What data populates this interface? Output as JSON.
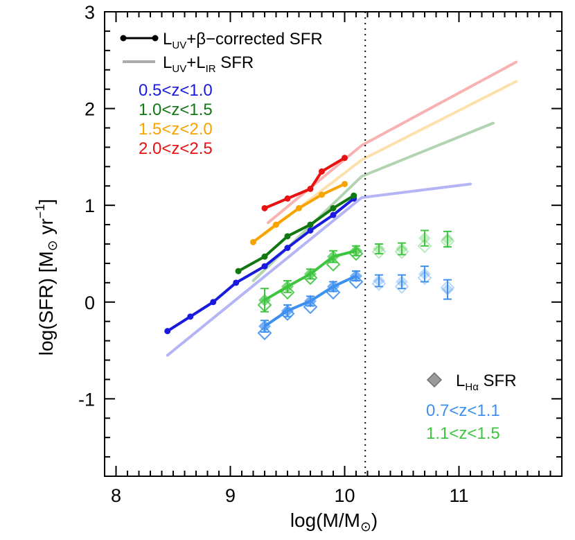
{
  "chart_data": {
    "type": "scatter",
    "xlabel": "log(M/M_sun)",
    "ylabel": "log(SFR) [M_sun yr^-1]",
    "xlim": [
      7.9,
      11.9
    ],
    "ylim": [
      -1.8,
      3.0
    ],
    "x_ticks": [
      "8",
      "9",
      "10",
      "11"
    ],
    "y_ticks": [
      "-1",
      "0",
      "1",
      "2",
      "3"
    ],
    "vline_x": 10.18,
    "colors": {
      "blue": "#1a1adf",
      "green": "#117811",
      "orange": "#f8a300",
      "red": "#e81010",
      "ha_blue": "#3d90ef",
      "ha_green": "#3fc43f",
      "grey": "#9a9a9a"
    },
    "legend": {
      "uv_beta": {
        "main": "L",
        "sub": "UV",
        "rest": "+β−corrected SFR"
      },
      "uv_ir": {
        "main": "L",
        "sub": "UV",
        "plus": "+L",
        "sub2": "IR",
        "rest": " SFR"
      },
      "ha": {
        "main": "L",
        "sub": "Hα",
        "rest": " SFR"
      }
    },
    "ranges_uv": [
      {
        "label": "0.5<z<1.0",
        "color": "blue"
      },
      {
        "label": "1.0<z<1.5",
        "color": "green"
      },
      {
        "label": "1.5<z<2.0",
        "color": "orange"
      },
      {
        "label": "2.0<z<2.5",
        "color": "red"
      }
    ],
    "ranges_ha": [
      {
        "label": "0.7<z<1.1",
        "color": "ha_blue"
      },
      {
        "label": "1.1<z<1.5",
        "color": "ha_green"
      }
    ],
    "uv_beta_series": [
      {
        "name": "0.5<z<1.0",
        "color": "blue",
        "x": [
          8.45,
          8.65,
          8.85,
          9.05,
          9.3,
          9.5,
          9.7,
          9.9,
          10.08
        ],
        "y": [
          -0.3,
          -0.15,
          0.0,
          0.2,
          0.37,
          0.56,
          0.74,
          0.9,
          1.07
        ]
      },
      {
        "name": "1.0<z<1.5",
        "color": "green",
        "x": [
          9.07,
          9.3,
          9.5,
          9.7,
          9.9,
          10.08
        ],
        "y": [
          0.32,
          0.47,
          0.68,
          0.8,
          0.97,
          1.1
        ]
      },
      {
        "name": "1.5<z<2.0",
        "color": "orange",
        "x": [
          9.2,
          9.4,
          9.6,
          9.8,
          10.0
        ],
        "y": [
          0.62,
          0.8,
          0.97,
          1.11,
          1.22
        ]
      },
      {
        "name": "2.0<z<2.5",
        "color": "red",
        "x": [
          9.3,
          9.5,
          9.7,
          9.8,
          10.0
        ],
        "y": [
          0.97,
          1.07,
          1.17,
          1.35,
          1.49
        ]
      }
    ],
    "uv_ir_series": [
      {
        "name": "0.5<z<1.0",
        "color": "blue",
        "x": [
          8.45,
          10.15,
          11.1
        ],
        "y": [
          -0.55,
          1.08,
          1.22
        ]
      },
      {
        "name": "1.0<z<1.5",
        "color": "green",
        "x": [
          9.2,
          10.15,
          11.3
        ],
        "y": [
          0.22,
          1.3,
          1.85
        ]
      },
      {
        "name": "1.5<z<2.0",
        "color": "orange",
        "x": [
          9.3,
          10.15,
          11.5
        ],
        "y": [
          0.7,
          1.47,
          2.28
        ]
      },
      {
        "name": "2.0<z<2.5",
        "color": "red",
        "x": [
          9.33,
          10.15,
          11.5
        ],
        "y": [
          0.82,
          1.62,
          2.48
        ]
      }
    ],
    "ha_series": [
      {
        "name": "0.7<z<1.1",
        "color": "ha_blue",
        "x": [
          9.3,
          9.5,
          9.7,
          9.9,
          10.1,
          10.3,
          10.5,
          10.7,
          10.9
        ],
        "y": [
          -0.25,
          -0.09,
          0.01,
          0.16,
          0.27,
          0.22,
          0.21,
          0.29,
          0.13
        ],
        "yerr": [
          0.06,
          0.06,
          0.05,
          0.05,
          0.05,
          0.06,
          0.07,
          0.08,
          0.1
        ],
        "y_open": [
          -0.32,
          -0.12,
          -0.05,
          0.1,
          0.21,
          0.19,
          0.16,
          0.25,
          0.15
        ]
      },
      {
        "name": "1.1<z<1.5",
        "color": "ha_green",
        "x": [
          9.3,
          9.5,
          9.7,
          9.9,
          10.1,
          10.3,
          10.5,
          10.7,
          10.9
        ],
        "y": [
          0.02,
          0.16,
          0.29,
          0.47,
          0.53,
          0.55,
          0.55,
          0.66,
          0.65
        ],
        "yerr": [
          0.12,
          0.06,
          0.05,
          0.06,
          0.05,
          0.05,
          0.06,
          0.08,
          0.08
        ],
        "y_open": [
          -0.03,
          0.1,
          0.25,
          0.39,
          0.5,
          0.52,
          0.52,
          0.58,
          0.63
        ]
      }
    ]
  }
}
